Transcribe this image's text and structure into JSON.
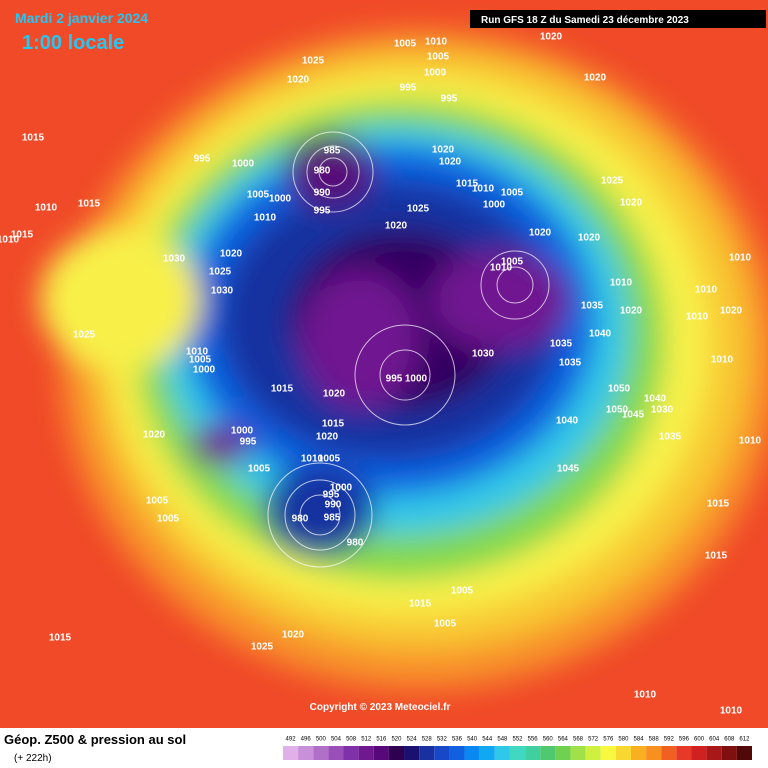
{
  "header": {
    "date": "Mardi 2 janvier 2024",
    "time": "1:00 locale",
    "run": "Run GFS 18 Z du Samedi 23 décembre 2023"
  },
  "copyright": "Copyright © 2023 Meteociel.fr",
  "footer": {
    "title": "Géop. Z500 & pression au sol",
    "lead": "(+ 222h)"
  },
  "legend": {
    "values": [
      492,
      496,
      500,
      504,
      508,
      512,
      516,
      520,
      524,
      528,
      532,
      536,
      540,
      544,
      548,
      552,
      556,
      560,
      564,
      568,
      572,
      576,
      580,
      584,
      588,
      592,
      596,
      600,
      604,
      608,
      612
    ],
    "colors": [
      "#e0b0e8",
      "#c890d8",
      "#b070c8",
      "#9850b8",
      "#8030a8",
      "#701890",
      "#580878",
      "#300050",
      "#1a1070",
      "#1830a0",
      "#1848c8",
      "#1060e0",
      "#0888f0",
      "#10a8f0",
      "#30c8e8",
      "#40d8c0",
      "#40d0a0",
      "#50c870",
      "#70d050",
      "#a0e048",
      "#d0f040",
      "#f8f840",
      "#f8d830",
      "#f8b020",
      "#f89020",
      "#f06020",
      "#e83828",
      "#d02020",
      "#a81818",
      "#801010",
      "#500808"
    ]
  },
  "isobar_labels": [
    1020,
    1005,
    1010,
    1005,
    1025,
    1000,
    1020,
    1020,
    995,
    995,
    1015,
    985,
    1020,
    1020,
    995,
    1000,
    980,
    1025,
    1015,
    1010,
    1005,
    1000,
    990,
    1005,
    1000,
    1010,
    1015,
    995,
    1025,
    1010,
    1020,
    1020,
    1020,
    1020,
    1015,
    1010,
    1020,
    1030,
    1025,
    1005,
    1010,
    1010,
    1010,
    1010,
    1030,
    1035,
    1020,
    1010,
    1020,
    1040,
    1025,
    1035,
    1010,
    1005,
    1000,
    1030,
    1035,
    1010,
    995,
    1000,
    1015,
    1020,
    1050,
    1040,
    1030,
    1050,
    1045,
    1040,
    1020,
    1000,
    995,
    1015,
    1020,
    1010,
    1005,
    1035,
    1010,
    1005,
    1045,
    1000,
    995,
    990,
    985,
    980,
    1005,
    1005,
    1015,
    980,
    1015,
    1015,
    1005,
    1005,
    1020,
    1015,
    1025,
    1010,
    1010
  ]
}
